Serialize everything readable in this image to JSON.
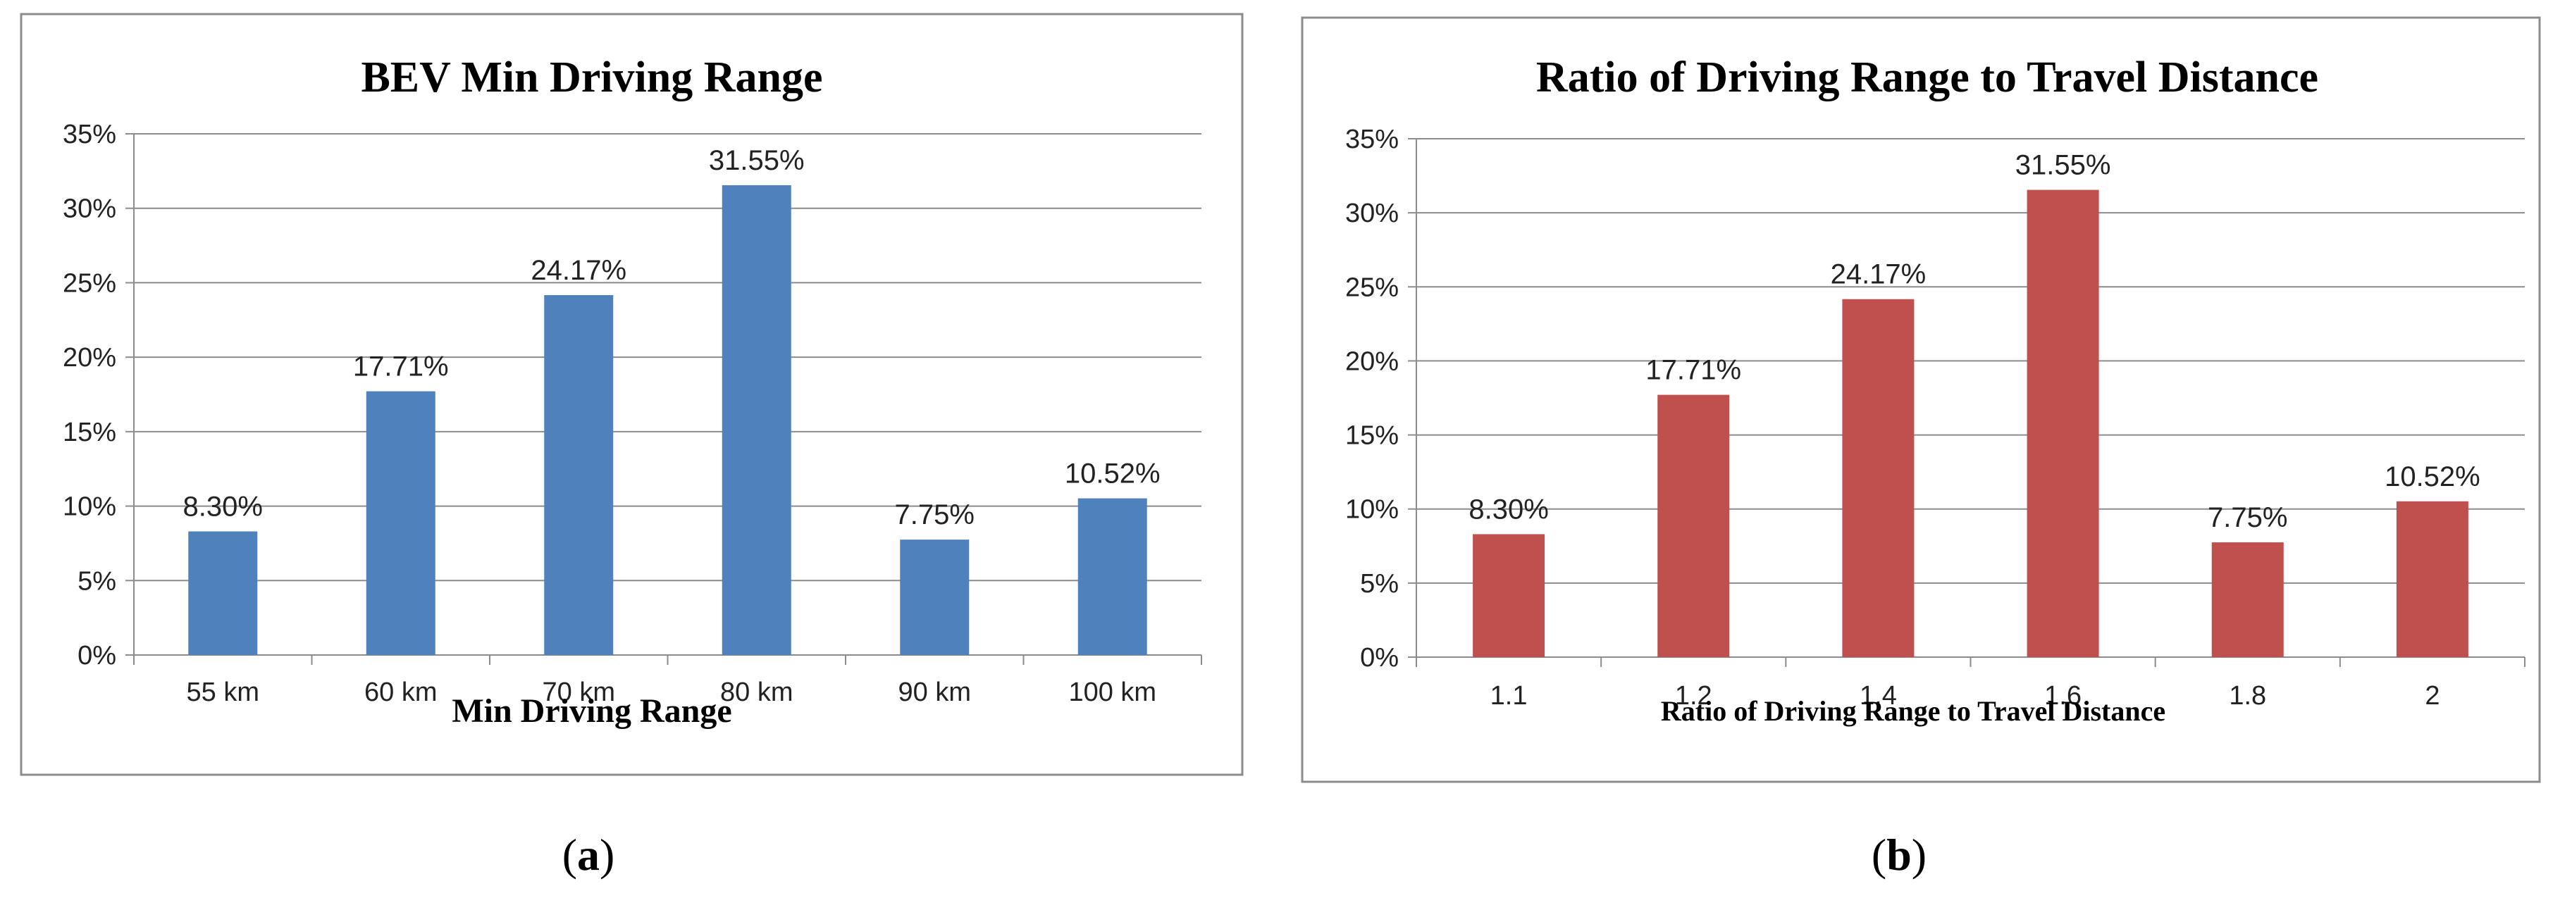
{
  "chart_data": [
    {
      "type": "bar",
      "panel": "a",
      "title": "BEV Min Driving Range",
      "xlabel": "Min Driving Range",
      "ylabel": "",
      "categories": [
        "55 km",
        "60 km",
        "70 km",
        "80 km",
        "90 km",
        "100 km"
      ],
      "values": [
        8.3,
        17.71,
        24.17,
        31.55,
        7.75,
        10.52
      ],
      "data_labels": [
        "8.30%",
        "17.71%",
        "24.17%",
        "31.55%",
        "7.75%",
        "10.52%"
      ],
      "y_ticks": [
        "0%",
        "5%",
        "10%",
        "15%",
        "20%",
        "25%",
        "30%",
        "35%"
      ],
      "ylim": [
        0,
        35
      ],
      "grid": true,
      "bar_color": "#4F81BD",
      "caption_letter": "a"
    },
    {
      "type": "bar",
      "panel": "b",
      "title": "Ratio of Driving Range to Travel Distance",
      "xlabel": "Ratio of Driving Range to Travel Distance",
      "ylabel": "",
      "categories": [
        "1.1",
        "1.2",
        "1.4",
        "1.6",
        "1.8",
        "2"
      ],
      "values": [
        8.3,
        17.71,
        24.17,
        31.55,
        7.75,
        10.52
      ],
      "data_labels": [
        "8.30%",
        "17.71%",
        "24.17%",
        "31.55%",
        "7.75%",
        "10.52%"
      ],
      "y_ticks": [
        "0%",
        "5%",
        "10%",
        "15%",
        "20%",
        "25%",
        "30%",
        "35%"
      ],
      "ylim": [
        0,
        35
      ],
      "grid": true,
      "bar_color": "#C0504D",
      "caption_letter": "b"
    }
  ]
}
